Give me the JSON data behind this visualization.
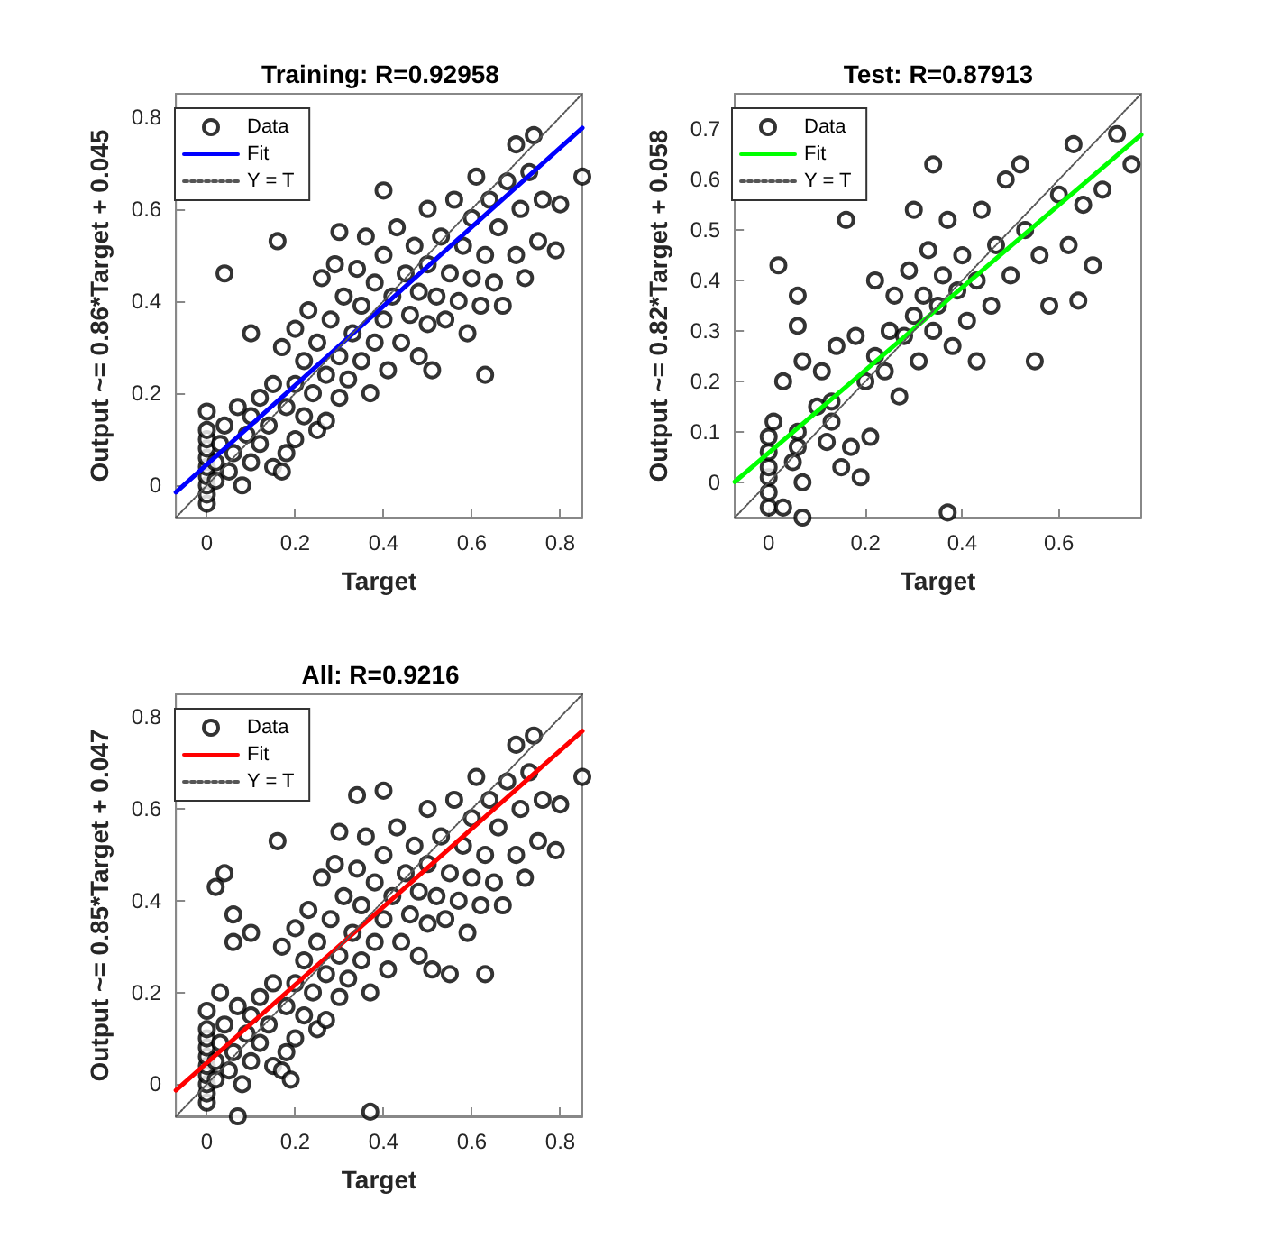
{
  "chart_data": [
    {
      "type": "scatter",
      "title": "Training: R=0.92958",
      "xlabel": "Target",
      "ylabel": "Output ~= 0.86*Target + 0.045",
      "xlim": [
        -0.07,
        0.85
      ],
      "ylim": [
        -0.07,
        0.85
      ],
      "xticks": [
        0,
        0.2,
        0.4,
        0.6,
        0.8
      ],
      "yticks": [
        0,
        0.2,
        0.4,
        0.6,
        0.8
      ],
      "grid": false,
      "legend": "top left",
      "series": [
        {
          "name": "Data",
          "marker": "circle",
          "color": "#000000",
          "x": [
            0,
            0,
            0,
            0,
            0,
            0,
            0,
            0,
            0,
            0,
            0.02,
            0.02,
            0.03,
            0.04,
            0.05,
            0.06,
            0.07,
            0.08,
            0.09,
            0.1,
            0.1,
            0.1,
            0.12,
            0.12,
            0.14,
            0.15,
            0.15,
            0.16,
            0.17,
            0.17,
            0.18,
            0.18,
            0.2,
            0.2,
            0.2,
            0.22,
            0.22,
            0.23,
            0.24,
            0.25,
            0.25,
            0.26,
            0.27,
            0.27,
            0.28,
            0.29,
            0.3,
            0.3,
            0.3,
            0.31,
            0.32,
            0.33,
            0.34,
            0.35,
            0.35,
            0.36,
            0.37,
            0.38,
            0.38,
            0.4,
            0.4,
            0.4,
            0.41,
            0.42,
            0.43,
            0.44,
            0.45,
            0.46,
            0.47,
            0.48,
            0.48,
            0.5,
            0.5,
            0.5,
            0.51,
            0.52,
            0.53,
            0.54,
            0.55,
            0.56,
            0.57,
            0.58,
            0.59,
            0.6,
            0.6,
            0.61,
            0.62,
            0.63,
            0.63,
            0.64,
            0.65,
            0.66,
            0.67,
            0.68,
            0.7,
            0.7,
            0.71,
            0.72,
            0.73,
            0.74,
            0.75,
            0.76,
            0.79,
            0.8,
            0.85,
            0.04
          ],
          "values": [
            -0.04,
            -0.02,
            0,
            0.02,
            0.04,
            0.06,
            0.08,
            0.1,
            0.12,
            0.16,
            0.01,
            0.05,
            0.09,
            0.13,
            0.03,
            0.07,
            0.17,
            0,
            0.11,
            0.05,
            0.15,
            0.33,
            0.09,
            0.19,
            0.13,
            0.04,
            0.22,
            0.53,
            0.03,
            0.3,
            0.07,
            0.17,
            0.1,
            0.22,
            0.34,
            0.15,
            0.27,
            0.38,
            0.2,
            0.12,
            0.31,
            0.45,
            0.14,
            0.24,
            0.36,
            0.48,
            0.19,
            0.28,
            0.55,
            0.41,
            0.23,
            0.33,
            0.47,
            0.27,
            0.39,
            0.54,
            0.2,
            0.31,
            0.44,
            0.36,
            0.5,
            0.64,
            0.25,
            0.41,
            0.56,
            0.31,
            0.46,
            0.37,
            0.52,
            0.28,
            0.42,
            0.35,
            0.48,
            0.6,
            0.25,
            0.41,
            0.54,
            0.36,
            0.46,
            0.62,
            0.4,
            0.52,
            0.33,
            0.45,
            0.58,
            0.67,
            0.39,
            0.24,
            0.5,
            0.62,
            0.44,
            0.56,
            0.39,
            0.66,
            0.5,
            0.74,
            0.6,
            0.45,
            0.68,
            0.76,
            0.53,
            0.62,
            0.51,
            0.61,
            0.67,
            0.46
          ]
        },
        {
          "name": "Fit",
          "type": "line",
          "marker": "none",
          "line_style": "solid",
          "color": "#0000ff",
          "x": [
            -0.07,
            0.85
          ],
          "values": [
            -0.015,
            0.776
          ]
        },
        {
          "name": "Y = T",
          "type": "line",
          "marker": "none",
          "line_style": "dotted",
          "color": "#555555",
          "x": [
            -0.07,
            0.85
          ],
          "values": [
            -0.07,
            0.85
          ]
        }
      ]
    },
    {
      "type": "scatter",
      "title": "Test: R=0.87913",
      "xlabel": "Target",
      "ylabel": "Output ~= 0.82*Target + 0.058",
      "xlim": [
        -0.07,
        0.77
      ],
      "ylim": [
        -0.07,
        0.77
      ],
      "xticks": [
        0,
        0.2,
        0.4,
        0.6
      ],
      "yticks": [
        0,
        0.1,
        0.2,
        0.3,
        0.4,
        0.5,
        0.6,
        0.7
      ],
      "grid": false,
      "legend": "top left",
      "series": [
        {
          "name": "Data",
          "marker": "circle",
          "color": "#000000",
          "x": [
            0,
            0,
            0,
            0,
            0,
            0,
            0.01,
            0.02,
            0.03,
            0.03,
            0.05,
            0.06,
            0.06,
            0.06,
            0.06,
            0.07,
            0.07,
            0.07,
            0.1,
            0.11,
            0.12,
            0.13,
            0.13,
            0.14,
            0.15,
            0.16,
            0.17,
            0.18,
            0.19,
            0.2,
            0.21,
            0.22,
            0.22,
            0.24,
            0.25,
            0.26,
            0.27,
            0.28,
            0.29,
            0.3,
            0.3,
            0.31,
            0.32,
            0.33,
            0.34,
            0.34,
            0.35,
            0.36,
            0.37,
            0.37,
            0.38,
            0.39,
            0.4,
            0.41,
            0.43,
            0.43,
            0.44,
            0.46,
            0.47,
            0.49,
            0.5,
            0.52,
            0.53,
            0.55,
            0.56,
            0.58,
            0.6,
            0.62,
            0.63,
            0.64,
            0.65,
            0.67,
            0.69,
            0.72,
            0.75
          ],
          "values": [
            -0.05,
            -0.02,
            0.01,
            0.03,
            0.06,
            0.09,
            0.12,
            0.43,
            0.2,
            -0.05,
            0.04,
            0.07,
            0.1,
            0.31,
            0.37,
            0,
            -0.07,
            0.24,
            0.15,
            0.22,
            0.08,
            0.12,
            0.16,
            0.27,
            0.03,
            0.52,
            0.07,
            0.29,
            0.01,
            0.2,
            0.09,
            0.25,
            0.4,
            0.22,
            0.3,
            0.37,
            0.17,
            0.29,
            0.42,
            0.33,
            0.54,
            0.24,
            0.37,
            0.46,
            0.63,
            0.3,
            0.35,
            0.41,
            -0.06,
            0.52,
            0.27,
            0.38,
            0.45,
            0.32,
            0.24,
            0.4,
            0.54,
            0.35,
            0.47,
            0.6,
            0.41,
            0.63,
            0.5,
            0.24,
            0.45,
            0.35,
            0.57,
            0.47,
            0.67,
            0.36,
            0.55,
            0.43,
            0.58,
            0.69,
            0.63
          ]
        },
        {
          "name": "Fit",
          "type": "line",
          "marker": "none",
          "line_style": "solid",
          "color": "#00ff00",
          "x": [
            -0.07,
            0.77
          ],
          "values": [
            0.001,
            0.689
          ]
        },
        {
          "name": "Y = T",
          "type": "line",
          "marker": "none",
          "line_style": "dotted",
          "color": "#555555",
          "x": [
            -0.07,
            0.77
          ],
          "values": [
            -0.07,
            0.77
          ]
        }
      ]
    },
    {
      "type": "scatter",
      "title": "All: R=0.9216",
      "xlabel": "Target",
      "ylabel": "Output ~= 0.85*Target + 0.047",
      "xlim": [
        -0.07,
        0.85
      ],
      "ylim": [
        -0.07,
        0.85
      ],
      "xticks": [
        0,
        0.2,
        0.4,
        0.6,
        0.8
      ],
      "yticks": [
        0,
        0.2,
        0.4,
        0.6,
        0.8
      ],
      "grid": false,
      "legend": "top left",
      "series": [
        {
          "name": "Data",
          "marker": "circle",
          "color": "#000000",
          "x": [
            0,
            0,
            0,
            0,
            0,
            0,
            0,
            0,
            0,
            0,
            0.02,
            0.02,
            0.03,
            0.04,
            0.05,
            0.06,
            0.07,
            0.08,
            0.09,
            0.1,
            0.1,
            0.1,
            0.12,
            0.12,
            0.14,
            0.15,
            0.15,
            0.16,
            0.17,
            0.17,
            0.18,
            0.18,
            0.2,
            0.2,
            0.2,
            0.22,
            0.22,
            0.23,
            0.24,
            0.25,
            0.25,
            0.26,
            0.27,
            0.27,
            0.28,
            0.29,
            0.3,
            0.3,
            0.3,
            0.31,
            0.32,
            0.33,
            0.34,
            0.35,
            0.35,
            0.36,
            0.37,
            0.38,
            0.38,
            0.4,
            0.4,
            0.4,
            0.41,
            0.42,
            0.43,
            0.44,
            0.45,
            0.46,
            0.47,
            0.48,
            0.48,
            0.5,
            0.5,
            0.5,
            0.51,
            0.52,
            0.53,
            0.54,
            0.55,
            0.56,
            0.57,
            0.58,
            0.59,
            0.6,
            0.6,
            0.61,
            0.62,
            0.63,
            0.63,
            0.64,
            0.65,
            0.66,
            0.67,
            0.68,
            0.7,
            0.7,
            0.71,
            0.72,
            0.73,
            0.74,
            0.75,
            0.76,
            0.79,
            0.8,
            0.85,
            0.04,
            0.02,
            0.06,
            0.06,
            0.37,
            0.07,
            0.03,
            0.19,
            0.55,
            0.34
          ],
          "values": [
            -0.04,
            -0.02,
            0,
            0.02,
            0.04,
            0.06,
            0.08,
            0.1,
            0.12,
            0.16,
            0.01,
            0.05,
            0.09,
            0.13,
            0.03,
            0.07,
            0.17,
            0,
            0.11,
            0.05,
            0.15,
            0.33,
            0.09,
            0.19,
            0.13,
            0.04,
            0.22,
            0.53,
            0.03,
            0.3,
            0.07,
            0.17,
            0.1,
            0.22,
            0.34,
            0.15,
            0.27,
            0.38,
            0.2,
            0.12,
            0.31,
            0.45,
            0.14,
            0.24,
            0.36,
            0.48,
            0.19,
            0.28,
            0.55,
            0.41,
            0.23,
            0.33,
            0.47,
            0.27,
            0.39,
            0.54,
            0.2,
            0.31,
            0.44,
            0.36,
            0.5,
            0.64,
            0.25,
            0.41,
            0.56,
            0.31,
            0.46,
            0.37,
            0.52,
            0.28,
            0.42,
            0.35,
            0.48,
            0.6,
            0.25,
            0.41,
            0.54,
            0.36,
            0.46,
            0.62,
            0.4,
            0.52,
            0.33,
            0.45,
            0.58,
            0.67,
            0.39,
            0.24,
            0.5,
            0.62,
            0.44,
            0.56,
            0.39,
            0.66,
            0.5,
            0.74,
            0.6,
            0.45,
            0.68,
            0.76,
            0.53,
            0.62,
            0.51,
            0.61,
            0.67,
            0.46,
            0.43,
            0.37,
            0.31,
            -0.06,
            -0.07,
            0.2,
            0.01,
            0.24,
            0.63
          ]
        },
        {
          "name": "Fit",
          "type": "line",
          "marker": "none",
          "line_style": "solid",
          "color": "#ff0000",
          "x": [
            -0.07,
            0.85
          ],
          "values": [
            -0.013,
            0.77
          ]
        },
        {
          "name": "Y = T",
          "type": "line",
          "marker": "none",
          "line_style": "dotted",
          "color": "#555555",
          "x": [
            -0.07,
            0.85
          ],
          "values": [
            -0.07,
            0.85
          ]
        }
      ]
    }
  ]
}
